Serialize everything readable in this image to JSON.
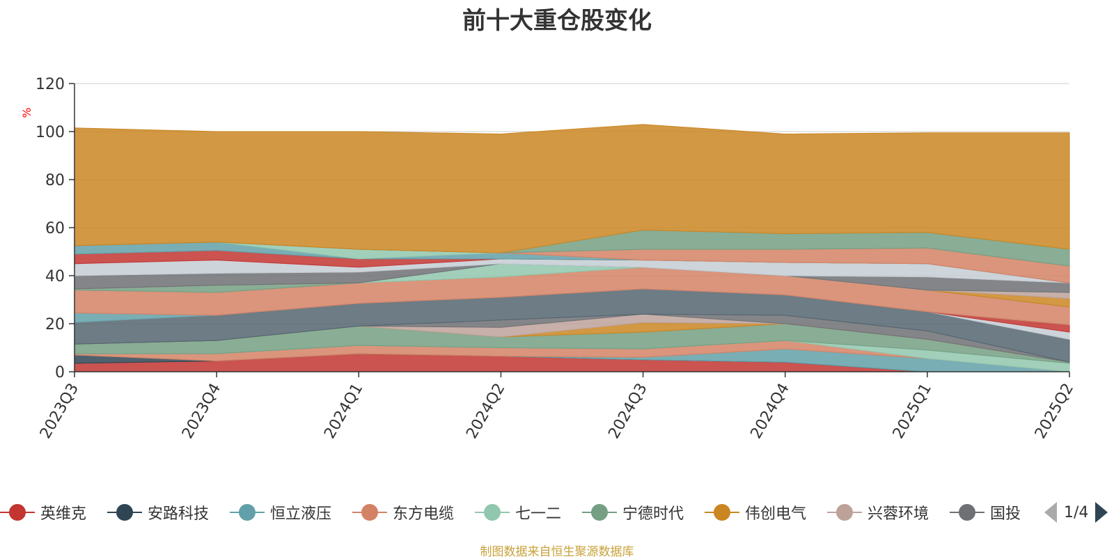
{
  "title": "前十大重仓股变化",
  "footer": "制图数据来自恒生聚源数据库",
  "pager": {
    "text": "1/4"
  },
  "colors": {
    "title": "#333333",
    "axis": "#333333",
    "grid": "#cccccc",
    "unit": "#ff0000",
    "footer": "#c8a13a",
    "top_band": "#d9a962"
  },
  "chart_data": {
    "type": "area",
    "stacked": true,
    "categories": [
      "2023Q3",
      "2023Q4",
      "2024Q1",
      "2024Q2",
      "2024Q3",
      "2024Q4",
      "2025Q1",
      "2025Q2"
    ],
    "ylim": [
      0,
      120
    ],
    "yticks": [
      0,
      20,
      40,
      60,
      80,
      100,
      120
    ],
    "ylabel": "%",
    "grid": true,
    "legend_position": "bottom",
    "legend_visible": [
      "英维克",
      "安路科技",
      "恒立液压",
      "东方电缆",
      "七一二",
      "宁德时代",
      "伟创电气",
      "兴蓉环境",
      "国投"
    ],
    "series": [
      {
        "name": "英维克",
        "color": "#c23531",
        "values": [
          3.5,
          4.5,
          7.5,
          6.5,
          5,
          4,
          0,
          0
        ]
      },
      {
        "name": "安路科技",
        "color": "#2f4554",
        "values": [
          3.5,
          0,
          0,
          0,
          0,
          0,
          0,
          0
        ]
      },
      {
        "name": "恒立液压",
        "color": "#61a0a8",
        "values": [
          0,
          0,
          0,
          0,
          1,
          5.5,
          5.5,
          0
        ]
      },
      {
        "name": "东方电缆",
        "color": "#d48265",
        "values": [
          0.5,
          3,
          3.5,
          3.5,
          3.5,
          3.5,
          0,
          0
        ]
      },
      {
        "name": "七一二",
        "color": "#91c7ae",
        "values": [
          0,
          0,
          0,
          0,
          0,
          0,
          3.5,
          3.5
        ]
      },
      {
        "name": "宁德时代",
        "color": "#749f83",
        "values": [
          4,
          5.5,
          8,
          4.5,
          7,
          7,
          4.5,
          0.5
        ]
      },
      {
        "name": "伟创电气",
        "color": "#ca8622",
        "values": [
          0,
          0,
          0,
          0,
          4,
          0,
          0,
          0
        ]
      },
      {
        "name": "兴蓉环境",
        "color": "#bda29a",
        "values": [
          0,
          0,
          0,
          4,
          3.5,
          0,
          0,
          0
        ]
      },
      {
        "name": "国投",
        "color": "#6e7074",
        "values": [
          0,
          0,
          0,
          3,
          0,
          3.5,
          3.5,
          0
        ]
      },
      {
        "name": "",
        "color": "#546570",
        "values": [
          9,
          10.5,
          9.5,
          9.5,
          10.5,
          8.5,
          8,
          9.5
        ]
      },
      {
        "name": "",
        "color": "#c4ccd3",
        "values": [
          0,
          0,
          0,
          0,
          0,
          0,
          0,
          3
        ]
      },
      {
        "name": "",
        "color": "#c23531",
        "values": [
          0,
          0,
          0,
          0,
          0,
          0,
          0,
          3
        ]
      },
      {
        "name": "",
        "color": "#61a0a8",
        "values": [
          4,
          0,
          0,
          0,
          0,
          0,
          0,
          0
        ]
      },
      {
        "name": "",
        "color": "#d48265",
        "values": [
          9.5,
          9.5,
          8.5,
          8.5,
          9,
          8,
          9,
          7.5
        ]
      },
      {
        "name": "",
        "color": "#749f83",
        "values": [
          0.5,
          3,
          0,
          0,
          0,
          0,
          0,
          0
        ]
      },
      {
        "name": "",
        "color": "#ca8622",
        "values": [
          0,
          0,
          0,
          0,
          0,
          0,
          0,
          3.5
        ]
      },
      {
        "name": "",
        "color": "#bda29a",
        "values": [
          0,
          0,
          0,
          0,
          0,
          0,
          0,
          2.5
        ]
      },
      {
        "name": "",
        "color": "#91c7ae",
        "values": [
          0,
          0,
          0,
          5.5,
          0,
          0,
          0,
          0
        ]
      },
      {
        "name": "",
        "color": "#6e7074",
        "values": [
          5.5,
          5,
          4.5,
          0,
          0,
          0,
          5.5,
          4
        ]
      },
      {
        "name": "",
        "color": "#c4ccd3",
        "values": [
          5,
          5.5,
          2,
          2,
          3,
          5.5,
          5.5,
          0
        ]
      },
      {
        "name": "",
        "color": "#c23531",
        "values": [
          4,
          4,
          3.5,
          0,
          0,
          0,
          0,
          0
        ]
      },
      {
        "name": "",
        "color": "#61a0a8",
        "values": [
          3.5,
          3.5,
          0,
          2.5,
          0,
          0,
          0,
          0
        ]
      },
      {
        "name": "",
        "color": "#91c7ae",
        "values": [
          0,
          0,
          4,
          0,
          0,
          0,
          0,
          0
        ]
      },
      {
        "name": "",
        "color": "#d48265",
        "values": [
          0,
          0,
          0,
          0,
          4.5,
          5.5,
          6.5,
          7
        ]
      },
      {
        "name": "",
        "color": "#749f83",
        "values": [
          0,
          0,
          0,
          0,
          8,
          6.5,
          6.5,
          7
        ]
      },
      {
        "name": "",
        "color": "#ca8622",
        "values": [
          49,
          46,
          49,
          49.5,
          44,
          41.5,
          41.5,
          48.5
        ]
      }
    ]
  }
}
